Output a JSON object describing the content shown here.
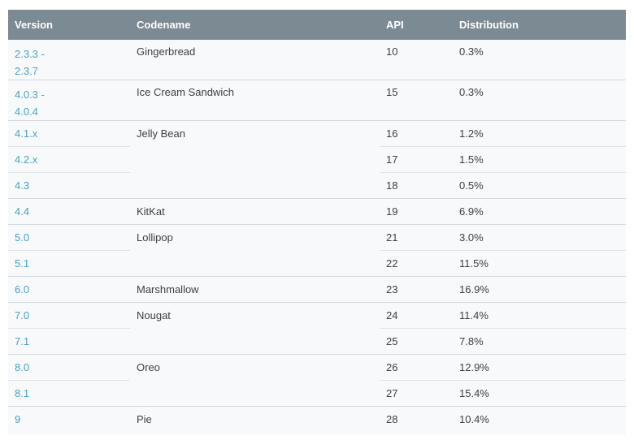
{
  "colors": {
    "header_bg": "#7c8a93",
    "header_text": "#ffffff",
    "row_bg": "#f8f9fa",
    "body_text": "#3c4043",
    "link": "#4aa0c7",
    "divider": "#e1e4e7",
    "group_divider": "#d5d9dd",
    "page_bg": "#ffffff"
  },
  "table": {
    "columns": [
      "Version",
      "Codename",
      "API",
      "Distribution"
    ],
    "groups": [
      {
        "codename": "Gingerbread",
        "rows": [
          {
            "version": "2.3.3 -\n2.3.7",
            "api": "10",
            "distribution": "0.3%"
          }
        ]
      },
      {
        "codename": "Ice Cream Sandwich",
        "rows": [
          {
            "version": "4.0.3 -\n4.0.4",
            "api": "15",
            "distribution": "0.3%"
          }
        ]
      },
      {
        "codename": "Jelly Bean",
        "rows": [
          {
            "version": "4.1.x",
            "api": "16",
            "distribution": "1.2%"
          },
          {
            "version": "4.2.x",
            "api": "17",
            "distribution": "1.5%"
          },
          {
            "version": "4.3",
            "api": "18",
            "distribution": "0.5%"
          }
        ]
      },
      {
        "codename": "KitKat",
        "rows": [
          {
            "version": "4.4",
            "api": "19",
            "distribution": "6.9%"
          }
        ]
      },
      {
        "codename": "Lollipop",
        "rows": [
          {
            "version": "5.0",
            "api": "21",
            "distribution": "3.0%"
          },
          {
            "version": "5.1",
            "api": "22",
            "distribution": "11.5%"
          }
        ]
      },
      {
        "codename": "Marshmallow",
        "rows": [
          {
            "version": "6.0",
            "api": "23",
            "distribution": "16.9%"
          }
        ]
      },
      {
        "codename": "Nougat",
        "rows": [
          {
            "version": "7.0",
            "api": "24",
            "distribution": "11.4%"
          },
          {
            "version": "7.1",
            "api": "25",
            "distribution": "7.8%"
          }
        ]
      },
      {
        "codename": "Oreo",
        "rows": [
          {
            "version": "8.0",
            "api": "26",
            "distribution": "12.9%"
          },
          {
            "version": "8.1",
            "api": "27",
            "distribution": "15.4%"
          }
        ]
      },
      {
        "codename": "Pie",
        "rows": [
          {
            "version": "9",
            "api": "28",
            "distribution": "10.4%"
          }
        ]
      }
    ]
  }
}
